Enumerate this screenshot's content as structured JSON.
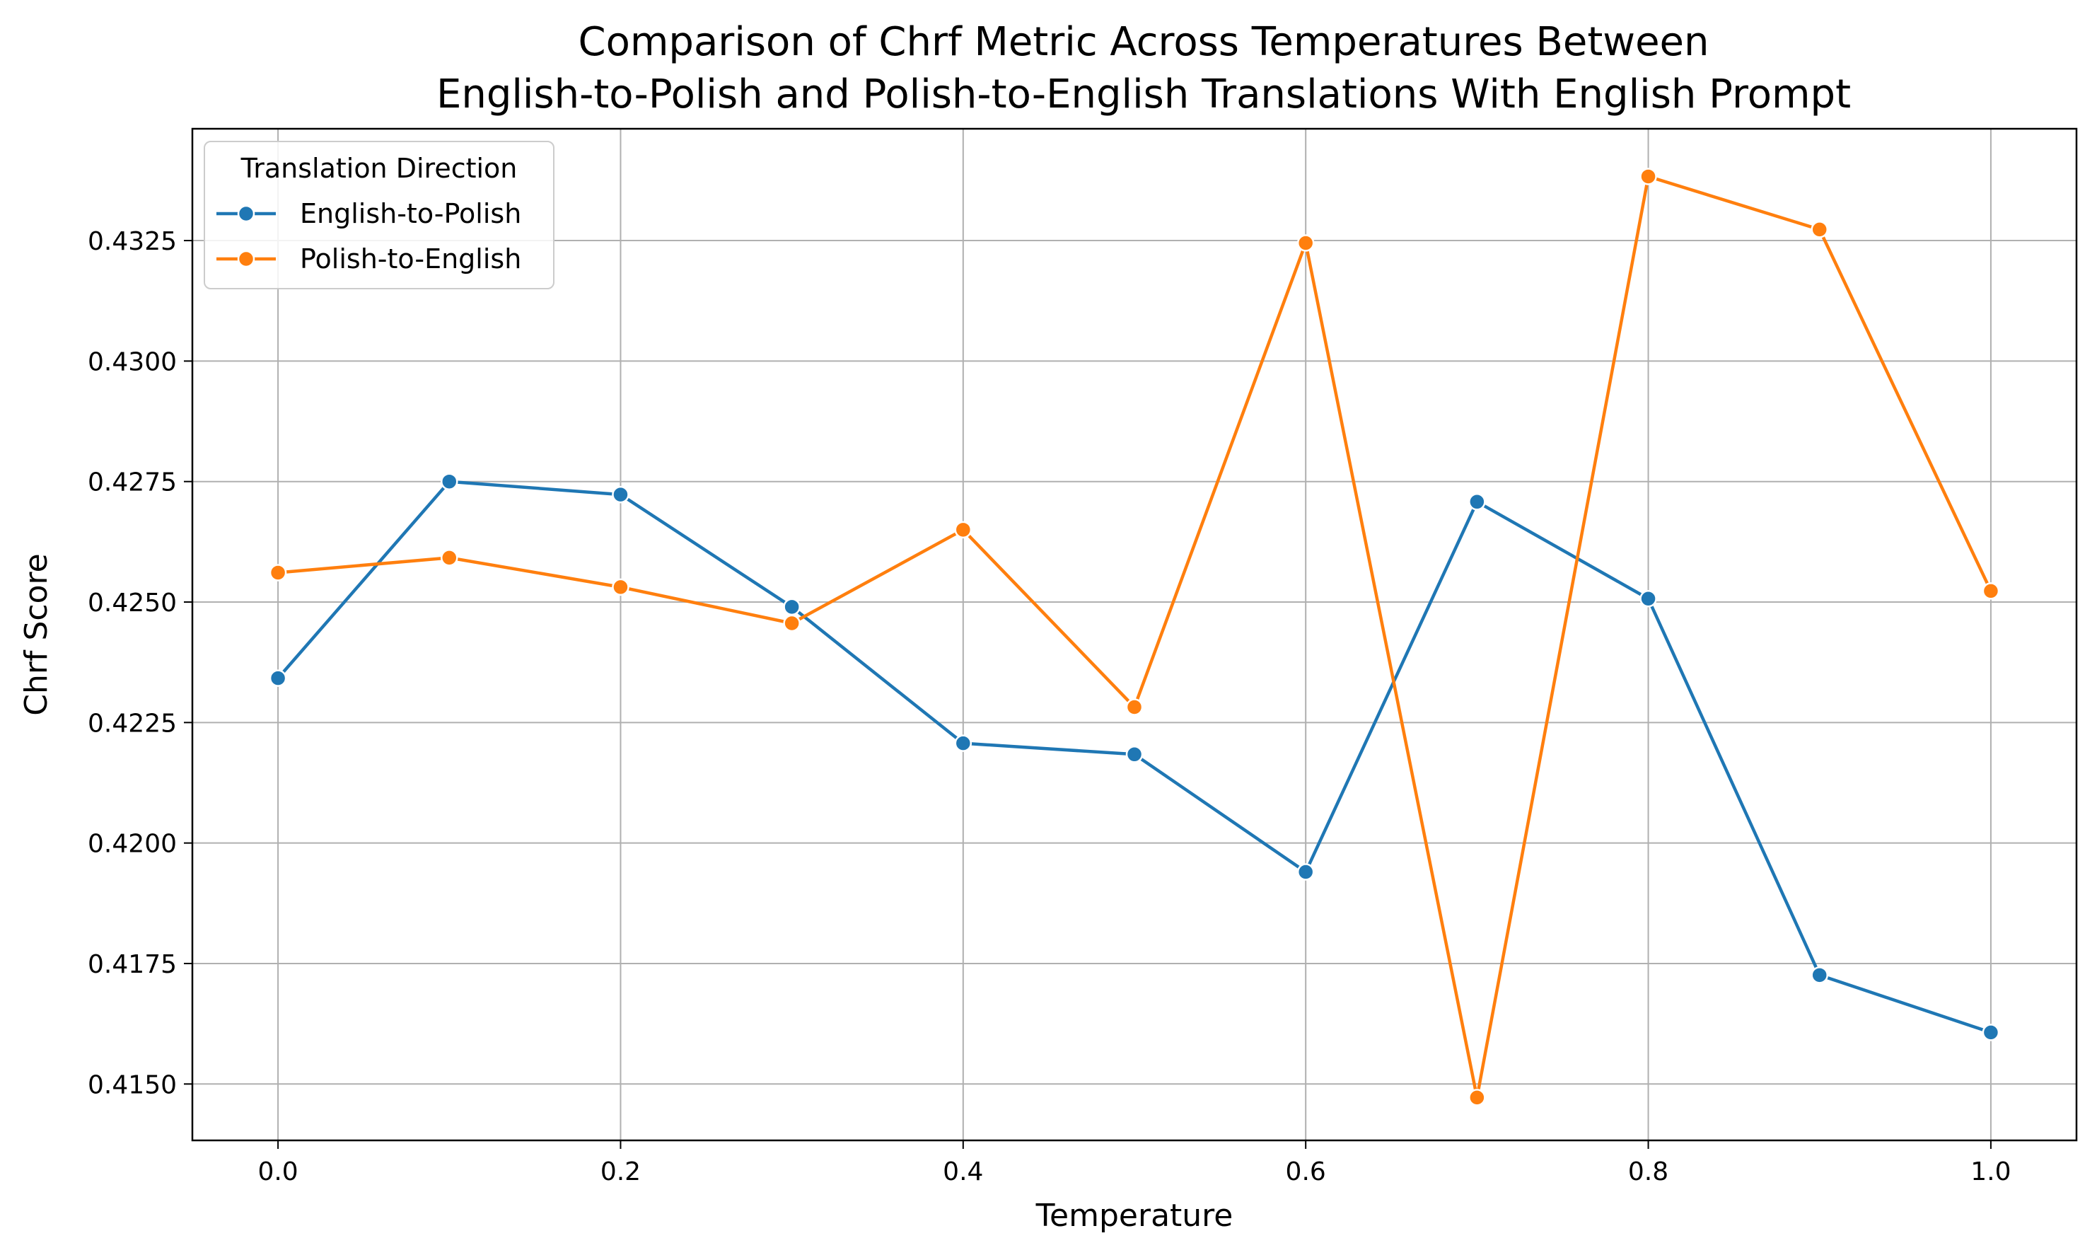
{
  "chart_data": {
    "type": "line",
    "title": [
      "Comparison of Chrf Metric Across Temperatures Between",
      "English-to-Polish and Polish-to-English Translations With English Prompt"
    ],
    "xlabel": "Temperature",
    "ylabel": "Chrf Score",
    "x": [
      0.0,
      0.1,
      0.2,
      0.3,
      0.4,
      0.5,
      0.6,
      0.7,
      0.8,
      0.9,
      1.0
    ],
    "xlim": [
      -0.05,
      1.05
    ],
    "ylim": [
      0.41383,
      0.43482
    ],
    "xticks": [
      0.0,
      0.2,
      0.4,
      0.6,
      0.8,
      1.0
    ],
    "xtick_labels": [
      "0.0",
      "0.2",
      "0.4",
      "0.6",
      "0.8",
      "1.0"
    ],
    "yticks": [
      0.415,
      0.4175,
      0.42,
      0.4225,
      0.425,
      0.4275,
      0.43,
      0.4325
    ],
    "ytick_labels": [
      "0.4150",
      "0.4175",
      "0.4200",
      "0.4225",
      "0.4250",
      "0.4275",
      "0.4300",
      "0.4325"
    ],
    "grid": true,
    "legend": {
      "title": "Translation Direction",
      "placement": "top-left"
    },
    "series": [
      {
        "name": "English-to-Polish",
        "color": "#1f77b4",
        "values": [
          0.42342,
          0.4275,
          0.42723,
          0.4249,
          0.42207,
          0.42184,
          0.4194,
          0.42708,
          0.42507,
          0.41726,
          0.41607
        ]
      },
      {
        "name": "Polish-to-English",
        "color": "#ff7f0e",
        "values": [
          0.42561,
          0.42592,
          0.42531,
          0.42456,
          0.4265,
          0.42282,
          0.43245,
          0.41472,
          0.43383,
          0.43273,
          0.42523
        ]
      }
    ]
  }
}
